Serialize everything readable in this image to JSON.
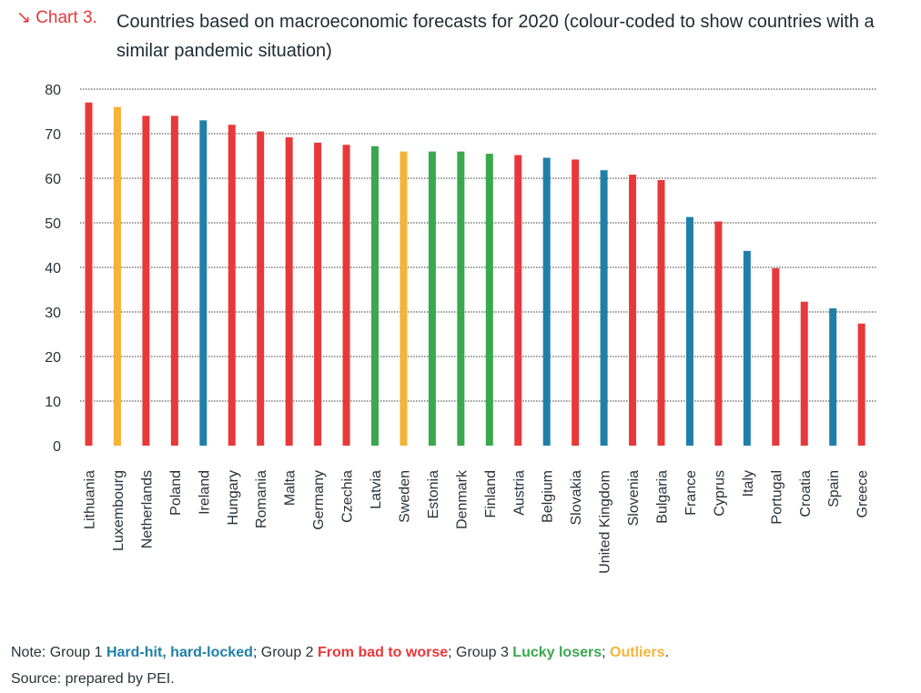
{
  "header": {
    "chart_label": "↘ Chart 3.",
    "title": "Countries based on macroeconomic forecasts for 2020 (colour-coded to show countries with a similar pandemic situation)"
  },
  "colors": {
    "group1": "#1f7fa8",
    "group2": "#e8383a",
    "group3": "#3aa84c",
    "outliers": "#f5b33a"
  },
  "chart_data": {
    "type": "bar",
    "title": "Countries based on macroeconomic forecasts for 2020 (colour-coded to show countries with a similar pandemic situation)",
    "xlabel": "",
    "ylabel": "",
    "ylim": [
      0,
      80
    ],
    "yticks": [
      0,
      10,
      20,
      30,
      40,
      50,
      60,
      70,
      80
    ],
    "grid": true,
    "categories": [
      "Lithuania",
      "Luxembourg",
      "Netherlands",
      "Poland",
      "Ireland",
      "Hungary",
      "Romania",
      "Malta",
      "Germany",
      "Czechia",
      "Latvia",
      "Sweden",
      "Estonia",
      "Denmark",
      "Finland",
      "Austria",
      "Belgium",
      "Slovakia",
      "United Kingdom",
      "Slovenia",
      "Bulgaria",
      "France",
      "Cyprus",
      "Italy",
      "Portugal",
      "Croatia",
      "Spain",
      "Greece"
    ],
    "values": [
      77,
      76,
      74,
      74,
      73,
      72,
      70.5,
      69.2,
      68,
      67.5,
      67.2,
      66,
      66,
      66,
      65.5,
      65.2,
      64.6,
      64.2,
      61.8,
      60.8,
      59.6,
      51.3,
      50.3,
      43.7,
      39.8,
      32.3,
      30.8,
      27.4
    ],
    "groups": [
      "group2",
      "outliers",
      "group2",
      "group2",
      "group1",
      "group2",
      "group2",
      "group2",
      "group2",
      "group2",
      "group3",
      "outliers",
      "group3",
      "group3",
      "group3",
      "group2",
      "group1",
      "group2",
      "group1",
      "group2",
      "group2",
      "group1",
      "group2",
      "group1",
      "group2",
      "group2",
      "group1",
      "group2"
    ]
  },
  "footnote": {
    "note_prefix": "Note: Group 1 ",
    "group1_label": "Hard-hit, hard-locked",
    "sep1": "; Group 2 ",
    "group2_label": "From bad to worse",
    "sep2": "; Group 3 ",
    "group3_label": "Lucky losers",
    "sep3": "; ",
    "outliers_label": "Outliers",
    "end": ".",
    "source": "Source: prepared by PEI."
  }
}
